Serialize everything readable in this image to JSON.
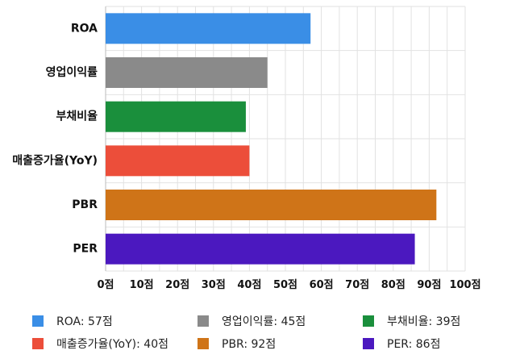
{
  "chart_data": {
    "type": "bar",
    "orientation": "horizontal",
    "categories": [
      "ROA",
      "영업이익률",
      "부채비율",
      "매출증가율(YoY)",
      "PBR",
      "PER"
    ],
    "values": [
      57,
      45,
      39,
      40,
      92,
      86
    ],
    "colors": [
      "#3a8ee6",
      "#8a8a8a",
      "#1a8f3c",
      "#ec4e3a",
      "#cf7418",
      "#4b18bf"
    ],
    "x_ticks": [
      "0점",
      "10점",
      "20점",
      "30점",
      "40점",
      "50점",
      "60점",
      "70점",
      "80점",
      "90점",
      "100점"
    ],
    "xlim": [
      0,
      100
    ],
    "grid": true,
    "legend_position": "bottom"
  },
  "legend": [
    {
      "label": "ROA: 57점",
      "color": "#3a8ee6"
    },
    {
      "label": "영업이익률: 45점",
      "color": "#8a8a8a"
    },
    {
      "label": "부채비율: 39점",
      "color": "#1a8f3c"
    },
    {
      "label": "매출증가율(YoY): 40점",
      "color": "#ec4e3a"
    },
    {
      "label": "PBR: 92점",
      "color": "#cf7418"
    },
    {
      "label": "PER: 86점",
      "color": "#4b18bf"
    }
  ]
}
